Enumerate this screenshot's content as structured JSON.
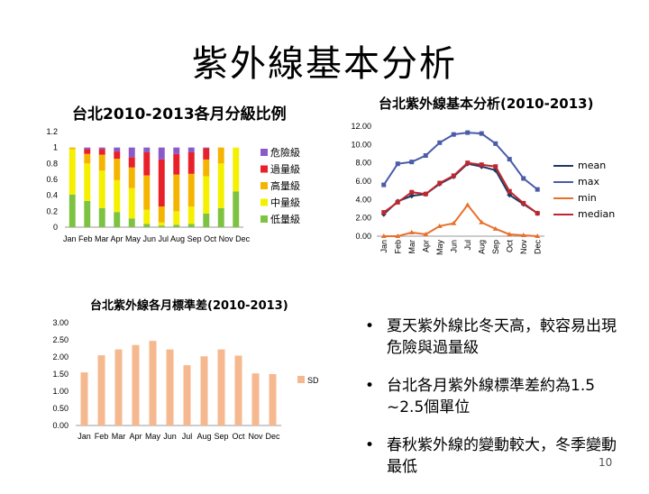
{
  "slide": {
    "title": "紫外線基本分析",
    "page_number": "10",
    "bullets": [
      "夏天紫外線比冬天高，較容易出現危險與過量級",
      "台北各月紫外線標準差約為1.5 ~2.5個單位",
      "春秋紫外線的變動較大，冬季變動最低"
    ],
    "bullet_symbol": "•"
  },
  "chart_data": [
    {
      "id": "grade_ratio",
      "type": "bar",
      "stacked": true,
      "title": "台北2010-2013各月分級比例",
      "categories": [
        "Jan",
        "Feb",
        "Mar",
        "Apr",
        "May",
        "Jun",
        "Jul",
        "Aug",
        "Sep",
        "Oct",
        "Nov",
        "Dec"
      ],
      "category_label_text": "Jan Feb Mar Apr May Jun  Jul  Aug Sep Oct Nov Dec",
      "yticks": [
        "0",
        "0.2",
        "0.4",
        "0.6",
        "0.8",
        "1",
        "1.2"
      ],
      "ylim": [
        0,
        1.2
      ],
      "legend_position": "right",
      "series": [
        {
          "name": "低量級",
          "color": "#7ec242",
          "values": [
            0.41,
            0.33,
            0.24,
            0.19,
            0.11,
            0.04,
            0.02,
            0.03,
            0.04,
            0.17,
            0.24,
            0.45
          ]
        },
        {
          "name": "中量級",
          "color": "#f4f000",
          "values": [
            0.57,
            0.47,
            0.47,
            0.4,
            0.38,
            0.18,
            0.04,
            0.17,
            0.22,
            0.47,
            0.56,
            0.55
          ]
        },
        {
          "name": "高量級",
          "color": "#f5b400",
          "values": [
            0.02,
            0.12,
            0.2,
            0.27,
            0.26,
            0.43,
            0.2,
            0.46,
            0.41,
            0.21,
            0.2,
            0.0
          ]
        },
        {
          "name": "過量級",
          "color": "#e8202a",
          "values": [
            0.0,
            0.06,
            0.07,
            0.09,
            0.13,
            0.29,
            0.59,
            0.26,
            0.27,
            0.14,
            0.0,
            0.0
          ]
        },
        {
          "name": "危險級",
          "color": "#8a5bc8",
          "values": [
            0.0,
            0.02,
            0.02,
            0.05,
            0.12,
            0.06,
            0.15,
            0.08,
            0.06,
            0.01,
            0.0,
            0.0
          ]
        }
      ],
      "legend_order": [
        "危險級",
        "過量級",
        "高量級",
        "中量級",
        "低量級"
      ]
    },
    {
      "id": "uv_basic",
      "type": "line",
      "title": "台北紫外線基本分析(2010-2013)",
      "categories": [
        "Jan",
        "Feb",
        "Mar",
        "Apr",
        "May",
        "Jun",
        "Jul",
        "Aug",
        "Sep",
        "Oct",
        "Nov",
        "Dec"
      ],
      "yticks": [
        "0.00",
        "2.00",
        "4.00",
        "6.00",
        "8.00",
        "10.00",
        "12.00"
      ],
      "ylim": [
        0,
        12
      ],
      "legend_position": "right",
      "series": [
        {
          "name": "mean",
          "color": "#1f3864",
          "marker": "diamond",
          "values": [
            2.4,
            3.8,
            4.4,
            4.6,
            5.7,
            6.5,
            7.9,
            7.6,
            7.2,
            4.5,
            3.5,
            2.5
          ]
        },
        {
          "name": "max",
          "color": "#4a5ba8",
          "marker": "square",
          "values": [
            5.6,
            7.9,
            8.1,
            8.8,
            10.2,
            11.1,
            11.3,
            11.2,
            10.1,
            8.4,
            6.3,
            5.1
          ]
        },
        {
          "name": "min",
          "color": "#e8702a",
          "marker": "triangle",
          "values": [
            0.0,
            0.0,
            0.4,
            0.2,
            1.1,
            1.4,
            3.4,
            1.5,
            0.8,
            0.2,
            0.1,
            0.0
          ]
        },
        {
          "name": "median",
          "color": "#c0262d",
          "marker": "square",
          "values": [
            2.6,
            3.7,
            4.8,
            4.6,
            5.8,
            6.6,
            8.0,
            7.8,
            7.6,
            4.9,
            3.6,
            2.5
          ]
        }
      ]
    },
    {
      "id": "uv_sd",
      "type": "bar",
      "title": "台北紫外線各月標準差(2010-2013)",
      "categories": [
        "Jan",
        "Feb",
        "Mar",
        "Apr",
        "May",
        "Jun",
        "Jul",
        "Aug",
        "Sep",
        "Oct",
        "Nov",
        "Dec"
      ],
      "yticks": [
        "0.00",
        "0.50",
        "1.00",
        "1.50",
        "2.00",
        "2.50",
        "3.00"
      ],
      "ylim": [
        0,
        3
      ],
      "legend_position": "right",
      "series": [
        {
          "name": "SD",
          "color": "#f6b88e",
          "values": [
            1.55,
            2.05,
            2.22,
            2.35,
            2.47,
            2.22,
            1.76,
            2.02,
            2.22,
            2.04,
            1.52,
            1.5
          ]
        }
      ]
    }
  ]
}
